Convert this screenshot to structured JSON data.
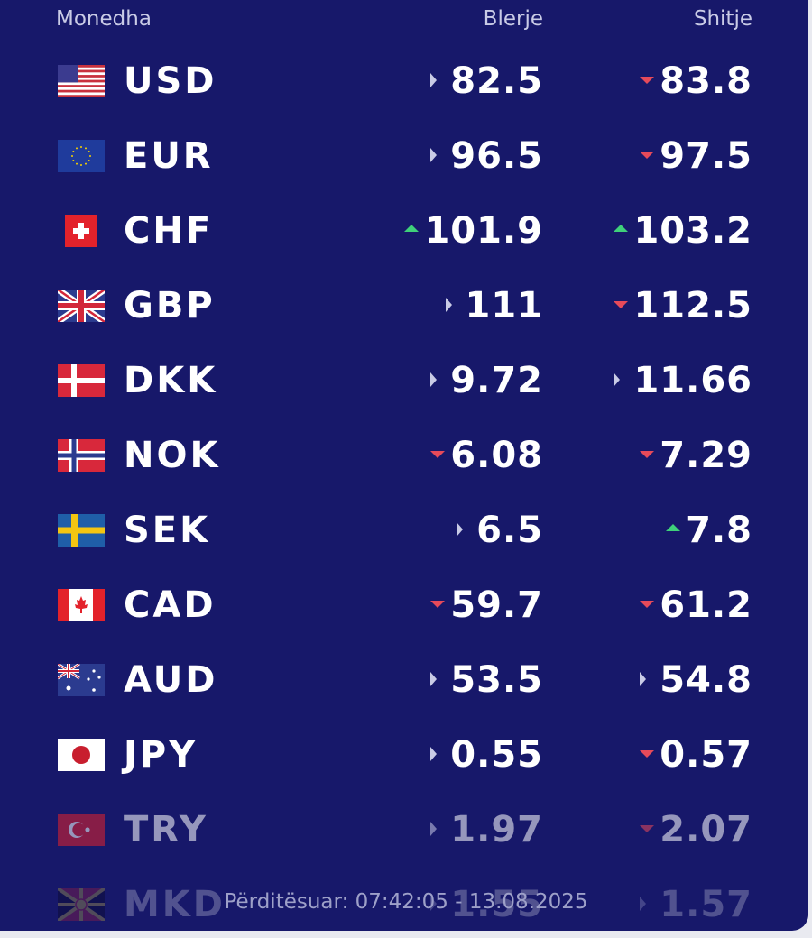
{
  "header": {
    "currency_label": "Monedha",
    "buy_label": "Blerje",
    "sell_label": "Shitje"
  },
  "colors": {
    "background": "#17186a",
    "up": "#3fd07a",
    "down": "#e64a5a",
    "neutral": "#c9cbe6"
  },
  "rates": [
    {
      "code": "USD",
      "flag": "us-flag-icon",
      "buy": "82.5",
      "buy_trend": "neutral",
      "sell": "83.8",
      "sell_trend": "down"
    },
    {
      "code": "EUR",
      "flag": "eu-flag-icon",
      "buy": "96.5",
      "buy_trend": "neutral",
      "sell": "97.5",
      "sell_trend": "down"
    },
    {
      "code": "CHF",
      "flag": "ch-flag-icon",
      "buy": "101.9",
      "buy_trend": "up",
      "sell": "103.2",
      "sell_trend": "up"
    },
    {
      "code": "GBP",
      "flag": "gb-flag-icon",
      "buy": "111",
      "buy_trend": "neutral",
      "sell": "112.5",
      "sell_trend": "down"
    },
    {
      "code": "DKK",
      "flag": "dk-flag-icon",
      "buy": "9.72",
      "buy_trend": "neutral",
      "sell": "11.66",
      "sell_trend": "neutral"
    },
    {
      "code": "NOK",
      "flag": "no-flag-icon",
      "buy": "6.08",
      "buy_trend": "down",
      "sell": "7.29",
      "sell_trend": "down"
    },
    {
      "code": "SEK",
      "flag": "se-flag-icon",
      "buy": "6.5",
      "buy_trend": "neutral",
      "sell": "7.8",
      "sell_trend": "up"
    },
    {
      "code": "CAD",
      "flag": "ca-flag-icon",
      "buy": "59.7",
      "buy_trend": "down",
      "sell": "61.2",
      "sell_trend": "down"
    },
    {
      "code": "AUD",
      "flag": "au-flag-icon",
      "buy": "53.5",
      "buy_trend": "neutral",
      "sell": "54.8",
      "sell_trend": "neutral"
    },
    {
      "code": "JPY",
      "flag": "jp-flag-icon",
      "buy": "0.55",
      "buy_trend": "neutral",
      "sell": "0.57",
      "sell_trend": "down"
    },
    {
      "code": "TRY",
      "flag": "tr-flag-icon",
      "buy": "1.97",
      "buy_trend": "neutral",
      "sell": "2.07",
      "sell_trend": "down"
    },
    {
      "code": "MKD",
      "flag": "mk-flag-icon",
      "buy": "1.55",
      "buy_trend": "neutral",
      "sell": "1.57",
      "sell_trend": "neutral"
    }
  ],
  "footer": {
    "updated_text": "Përditësuar: 07:42:05 - 13.08.2025"
  }
}
